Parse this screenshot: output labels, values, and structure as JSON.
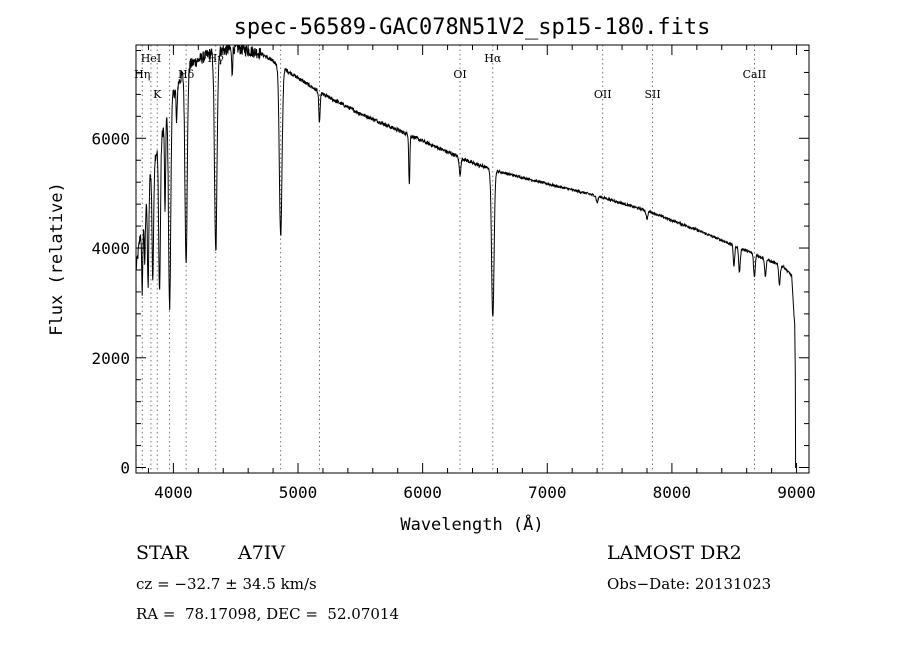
{
  "chart_data": {
    "type": "line",
    "title": "spec-56589-GAC078N51V2_sp15-180.fits",
    "xlabel": "Wavelength (Å)",
    "ylabel": "Flux (relative)",
    "xlim": [
      3700,
      9100
    ],
    "ylim": [
      -100,
      7700
    ],
    "x_ticks": [
      4000,
      5000,
      6000,
      7000,
      8000,
      9000
    ],
    "x_tick_labels": [
      "4000",
      "5000",
      "6000",
      "7000",
      "8000",
      "9000"
    ],
    "y_ticks": [
      0,
      2000,
      4000,
      6000
    ],
    "y_tick_labels": [
      "0",
      "2000",
      "4000",
      "6000"
    ],
    "line_color": "#000000",
    "continuum_points": [
      [
        3700,
        3600
      ],
      [
        3760,
        4700
      ],
      [
        3830,
        5500
      ],
      [
        3900,
        6000
      ],
      [
        3980,
        6700
      ],
      [
        4100,
        7300
      ],
      [
        4300,
        7550
      ],
      [
        4500,
        7650
      ],
      [
        4700,
        7550
      ],
      [
        4900,
        7250
      ],
      [
        5200,
        6800
      ],
      [
        5500,
        6450
      ],
      [
        5800,
        6150
      ],
      [
        6100,
        5850
      ],
      [
        6400,
        5550
      ],
      [
        6600,
        5400
      ],
      [
        7000,
        5170
      ],
      [
        7400,
        4950
      ],
      [
        7800,
        4680
      ],
      [
        8200,
        4330
      ],
      [
        8600,
        3950
      ],
      [
        8900,
        3650
      ],
      [
        8960,
        3500
      ],
      [
        8985,
        2600
      ],
      [
        9000,
        0
      ]
    ],
    "absorption_lines": [
      {
        "x": 3750,
        "depth": 1300,
        "width": 7
      },
      {
        "x": 3770,
        "depth": 1100,
        "width": 7
      },
      {
        "x": 3797,
        "depth": 1800,
        "width": 8
      },
      {
        "x": 3835,
        "depth": 2100,
        "width": 9
      },
      {
        "x": 3889,
        "depth": 2700,
        "width": 10
      },
      {
        "x": 3933,
        "depth": 1700,
        "width": 6
      },
      {
        "x": 3970,
        "depth": 3700,
        "width": 12
      },
      {
        "x": 4026,
        "depth": 700,
        "width": 6
      },
      {
        "x": 4102,
        "depth": 3500,
        "width": 13
      },
      {
        "x": 4340,
        "depth": 3650,
        "width": 14
      },
      {
        "x": 4471,
        "depth": 450,
        "width": 6
      },
      {
        "x": 4861,
        "depth": 3100,
        "width": 15
      },
      {
        "x": 5172,
        "depth": 550,
        "width": 8
      },
      {
        "x": 5893,
        "depth": 900,
        "width": 6
      },
      {
        "x": 6300,
        "depth": 300,
        "width": 10
      },
      {
        "x": 6563,
        "depth": 2700,
        "width": 14
      },
      {
        "x": 7400,
        "depth": 120,
        "width": 10
      },
      {
        "x": 7800,
        "depth": 150,
        "width": 10
      },
      {
        "x": 8498,
        "depth": 380,
        "width": 8
      },
      {
        "x": 8542,
        "depth": 450,
        "width": 9
      },
      {
        "x": 8662,
        "depth": 420,
        "width": 9
      },
      {
        "x": 8750,
        "depth": 330,
        "width": 8
      },
      {
        "x": 8863,
        "depth": 350,
        "width": 9
      }
    ],
    "line_markers": [
      {
        "x": 3750,
        "label": "Hη",
        "row": 2
      },
      {
        "x": 3820,
        "label": "HeI",
        "row": 1
      },
      {
        "x": 3870,
        "label": "K",
        "row": 3
      },
      {
        "x": 3970,
        "label": "",
        "row": 0
      },
      {
        "x": 4102,
        "label": "Hδ",
        "row": 2
      },
      {
        "x": 4340,
        "label": "Hγ",
        "row": 1
      },
      {
        "x": 4861,
        "label": "",
        "row": 0
      },
      {
        "x": 5172,
        "label": "",
        "row": 0
      },
      {
        "x": 6300,
        "label": "OI",
        "row": 2
      },
      {
        "x": 6563,
        "label": "Hα",
        "row": 1
      },
      {
        "x": 7445,
        "label": "OII",
        "row": 3
      },
      {
        "x": 7845,
        "label": "SII",
        "row": 3
      },
      {
        "x": 8662,
        "label": "CaII",
        "row": 2
      }
    ]
  },
  "info": {
    "object_type": "STAR",
    "spectral_class": "A7IV",
    "survey": "LAMOST DR2",
    "redshift": "cz = −32.7 ± 34.5 km/s",
    "obs_date": "Obs−Date: 20131023",
    "coordinates": "RA =  78.17098, DEC =  52.07014"
  }
}
